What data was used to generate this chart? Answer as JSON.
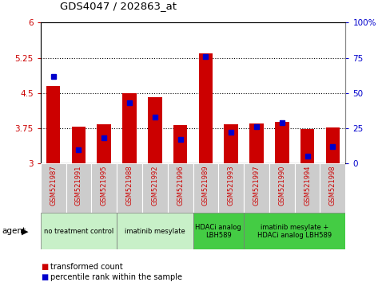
{
  "title": "GDS4047 / 202863_at",
  "samples": [
    "GSM521987",
    "GSM521991",
    "GSM521995",
    "GSM521988",
    "GSM521992",
    "GSM521996",
    "GSM521989",
    "GSM521993",
    "GSM521997",
    "GSM521990",
    "GSM521994",
    "GSM521998"
  ],
  "transformed_count": [
    4.65,
    3.78,
    3.83,
    4.5,
    4.42,
    3.82,
    5.34,
    3.84,
    3.86,
    3.88,
    3.73,
    3.76
  ],
  "percentile_rank": [
    62,
    10,
    18,
    43,
    33,
    17,
    76,
    22,
    26,
    29,
    5,
    12
  ],
  "ylim_left": [
    3.0,
    6.0
  ],
  "ylim_right": [
    0,
    100
  ],
  "yticks_left": [
    3.0,
    3.75,
    4.5,
    5.25,
    6.0
  ],
  "yticks_right": [
    0,
    25,
    50,
    75,
    100
  ],
  "yticklabels_left": [
    "3",
    "3.75",
    "4.5",
    "5.25",
    "6"
  ],
  "yticklabels_right": [
    "0",
    "25",
    "50",
    "75",
    "100%"
  ],
  "hlines": [
    3.75,
    4.5,
    5.25
  ],
  "bar_color": "#cc0000",
  "marker_color": "#0000cc",
  "bar_width": 0.55,
  "agent_groups": [
    {
      "label": "no treatment control",
      "start": 0,
      "end": 3,
      "color": "#c8f0c8"
    },
    {
      "label": "imatinib mesylate",
      "start": 3,
      "end": 6,
      "color": "#c8f0c8"
    },
    {
      "label": "HDACi analog\nLBH589",
      "start": 6,
      "end": 8,
      "color": "#44cc44"
    },
    {
      "label": "imatinib mesylate +\nHDACi analog LBH589",
      "start": 8,
      "end": 12,
      "color": "#44cc44"
    }
  ],
  "tick_label_color_left": "#cc0000",
  "tick_label_color_right": "#0000cc",
  "agent_label": "agent",
  "legend_items": [
    {
      "label": "transformed count",
      "color": "#cc0000"
    },
    {
      "label": "percentile rank within the sample",
      "color": "#0000cc"
    }
  ],
  "plot_bg_color": "#ffffff",
  "fig_bg_color": "#ffffff",
  "sample_label_color": "#cc0000",
  "sample_bg_color": "#cccccc",
  "sample_border_color": "#aaaaaa"
}
